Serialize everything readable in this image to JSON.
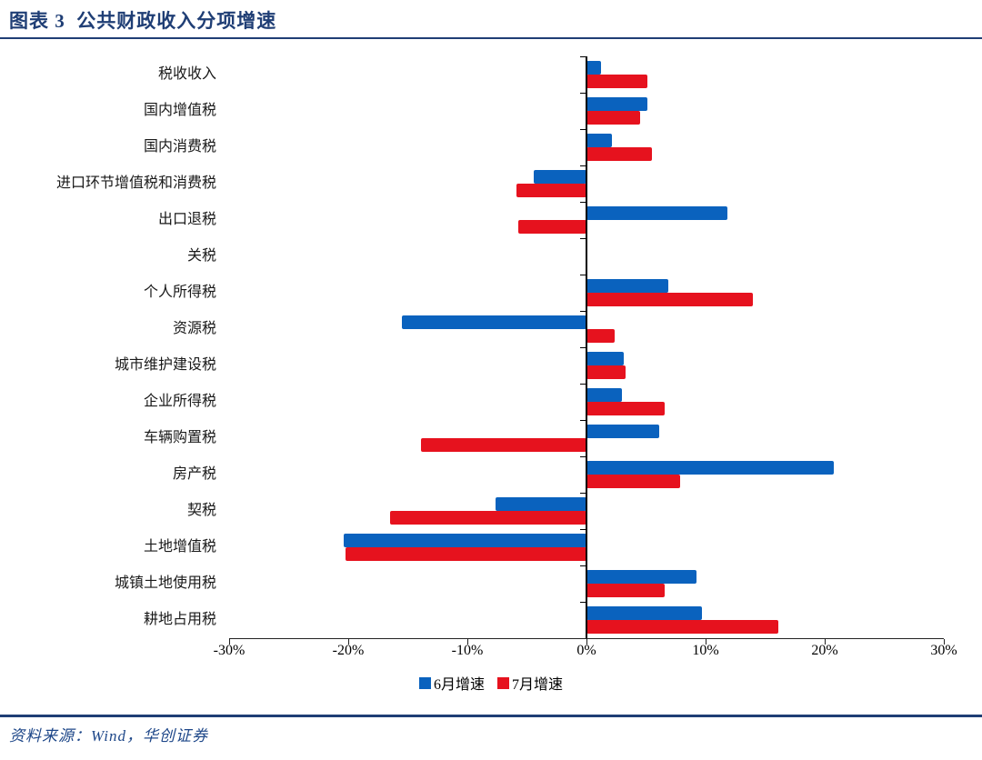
{
  "header": {
    "title": "图表 3  公共财政收入分项增速"
  },
  "chart_data": {
    "type": "bar",
    "orientation": "horizontal",
    "title": "图表 3  公共财政收入分项增速",
    "categories": [
      "税收收入",
      "国内增值税",
      "国内消费税",
      "进口环节增值税和消费税",
      "出口退税",
      "关税",
      "个人所得税",
      "资源税",
      "城市维护建设税",
      "企业所得税",
      "车辆购置税",
      "房产税",
      "契税",
      "土地增值税",
      "城镇土地使用税",
      "耕地占用税"
    ],
    "series": [
      {
        "name": "6月增速",
        "color": "#0A62BE",
        "values": [
          1.2,
          5.1,
          2.1,
          -4.4,
          11.8,
          0,
          6.9,
          -15.5,
          3.1,
          3.0,
          6.1,
          20.8,
          -7.6,
          -20.4,
          9.2,
          9.7
        ]
      },
      {
        "name": "7月增速",
        "color": "#E6121E",
        "values": [
          5.1,
          4.5,
          5.5,
          -5.9,
          -5.7,
          0,
          14.0,
          2.4,
          3.3,
          6.6,
          -13.9,
          7.9,
          -16.5,
          -20.2,
          6.6,
          16.1
        ]
      }
    ],
    "xlim": [
      -30,
      30
    ],
    "x_ticks": [
      "-30%",
      "-20%",
      "-10%",
      "0%",
      "10%",
      "20%",
      "30%"
    ],
    "x_tick_values": [
      -30,
      -20,
      -10,
      0,
      10,
      20,
      30
    ],
    "unit": "%",
    "grid": false,
    "legend_position": "bottom-center"
  },
  "footer": {
    "source": "资料来源：Wind，华创证券"
  },
  "colors": {
    "navy": "#1F3E75",
    "bar_blue": "#0A62BE",
    "bar_red": "#E6121E"
  }
}
